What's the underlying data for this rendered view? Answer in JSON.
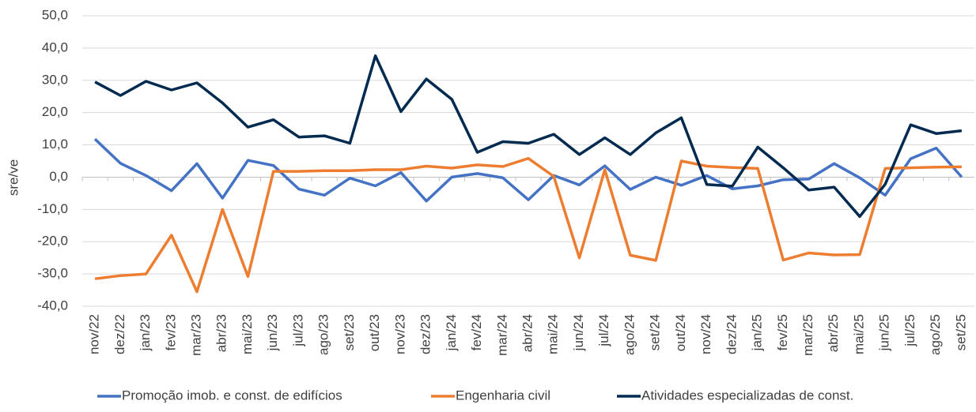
{
  "chart_data": {
    "type": "line",
    "y_label": "sre/ve",
    "categories": [
      "nov/22",
      "dez/22",
      "jan/23",
      "fev/23",
      "mar/23",
      "abr/23",
      "mai/23",
      "jun/23",
      "jul/23",
      "ago/23",
      "set/23",
      "out/23",
      "nov/23",
      "dez/23",
      "jan/24",
      "fev/24",
      "mar/24",
      "abr/24",
      "mai/24",
      "jun/24",
      "jul/24",
      "ago/24",
      "set/24",
      "out/24",
      "nov/24",
      "dez/24",
      "jan/25",
      "fev/25",
      "mar/25",
      "abr/25",
      "mai/25",
      "jun/25",
      "jul/25",
      "ago/25",
      "set/25"
    ],
    "series": [
      {
        "name": "Promoção imob. e const. de edifícios",
        "color": "#4472c4",
        "values": [
          11.8,
          4.3,
          0.5,
          -4.2,
          4.2,
          -6.5,
          5.2,
          3.6,
          -3.7,
          -5.6,
          -0.3,
          -2.7,
          1.4,
          -7.4,
          0.0,
          1.1,
          -0.2,
          -7.0,
          0.5,
          -2.4,
          3.5,
          -3.8,
          0.0,
          -2.5,
          0.5,
          -3.6,
          -2.7,
          -0.8,
          -0.6,
          4.2,
          -0.2,
          -5.6,
          5.7,
          9.0,
          0.0
        ]
      },
      {
        "name": "Engenharia civil",
        "color": "#ed7d31",
        "values": [
          -31.5,
          -30.5,
          -30.0,
          -18.0,
          -35.5,
          -10.0,
          -30.8,
          1.8,
          1.8,
          2.0,
          2.0,
          2.3,
          2.3,
          3.4,
          2.8,
          3.8,
          3.3,
          5.8,
          0.2,
          -25.0,
          2.3,
          -24.2,
          -25.8,
          5.0,
          3.4,
          3.0,
          2.7,
          -25.7,
          -23.5,
          -24.1,
          -24.0,
          2.7,
          2.9,
          3.1,
          3.2
        ]
      },
      {
        "name": "Atividades especializadas de const.",
        "color": "#002a4f",
        "values": [
          29.5,
          25.3,
          29.7,
          27.0,
          29.2,
          23.0,
          15.5,
          17.8,
          12.4,
          12.8,
          10.5,
          37.6,
          20.3,
          30.4,
          24.1,
          7.7,
          11.0,
          10.5,
          13.3,
          7.0,
          12.2,
          7.0,
          13.7,
          18.4,
          -2.3,
          -2.8,
          9.3,
          2.9,
          -4.0,
          -3.1,
          -12.2,
          -2.2,
          16.2,
          13.5,
          14.4
        ]
      }
    ],
    "ylim": [
      -40,
      50
    ],
    "yticks": [
      {
        "value": -40,
        "label": "-40,0"
      },
      {
        "value": -30,
        "label": "-30,0"
      },
      {
        "value": -20,
        "label": "-20,0"
      },
      {
        "value": -10,
        "label": "-10,0"
      },
      {
        "value": 0,
        "label": "0,0"
      },
      {
        "value": 10,
        "label": "10,0"
      },
      {
        "value": 20,
        "label": "20,0"
      },
      {
        "value": 30,
        "label": "30,0"
      },
      {
        "value": 40,
        "label": "40,0"
      },
      {
        "value": 50,
        "label": "50,0"
      }
    ],
    "grid": true,
    "legend": "bottom"
  }
}
